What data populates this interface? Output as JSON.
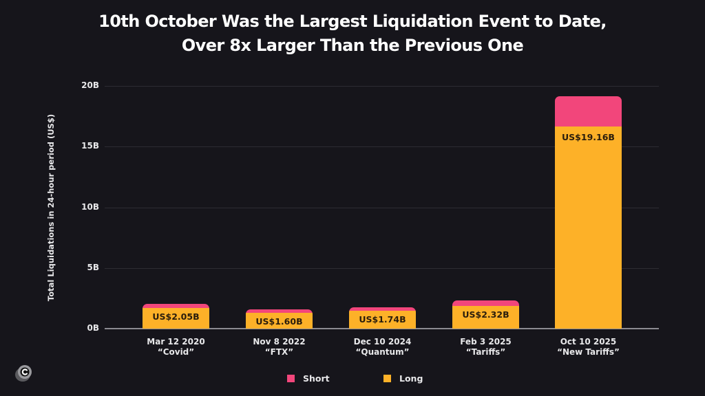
{
  "chart_data": {
    "type": "bar",
    "stacked": true,
    "title": "10th October Was the Largest Liquidation Event to Date, Over 8x Larger Than the Previous One",
    "title_lines": [
      "10th October Was the Largest Liquidation Event to Date,",
      "Over 8x Larger Than the Previous One"
    ],
    "xlabel": "",
    "ylabel": "Total Liquidations in 24-hour period (US$)",
    "ylim": [
      0,
      20
    ],
    "yticks": [
      "0B",
      "5B",
      "10B",
      "15B",
      "20B"
    ],
    "grid": true,
    "legend_position": "bottom",
    "categories": [
      {
        "date": "Mar 12 2020",
        "name": "“Covid”"
      },
      {
        "date": "Nov 8 2022",
        "name": "“FTX”"
      },
      {
        "date": "Dec 10 2024",
        "name": "“Quantum”"
      },
      {
        "date": "Feb 3 2025",
        "name": "“Tariffs”"
      },
      {
        "date": "Oct 10 2025",
        "name": "“New Tariffs”"
      }
    ],
    "totals_labels": [
      "US$2.05B",
      "US$1.60B",
      "US$1.74B",
      "US$2.32B",
      "US$19.16B"
    ],
    "totals": [
      2.05,
      1.6,
      1.74,
      2.32,
      19.16
    ],
    "series": [
      {
        "name": "Short",
        "color": "#f2467b",
        "values": [
          0.33,
          0.27,
          0.29,
          0.45,
          2.5
        ]
      },
      {
        "name": "Long",
        "color": "#fdb128",
        "values": [
          1.72,
          1.33,
          1.45,
          1.87,
          16.66
        ]
      }
    ]
  },
  "legend": [
    {
      "label": "Short",
      "color": "#f2467b"
    },
    {
      "label": "Long",
      "color": "#fdb128"
    }
  ],
  "logo": {
    "icon": "c-logo-icon"
  }
}
